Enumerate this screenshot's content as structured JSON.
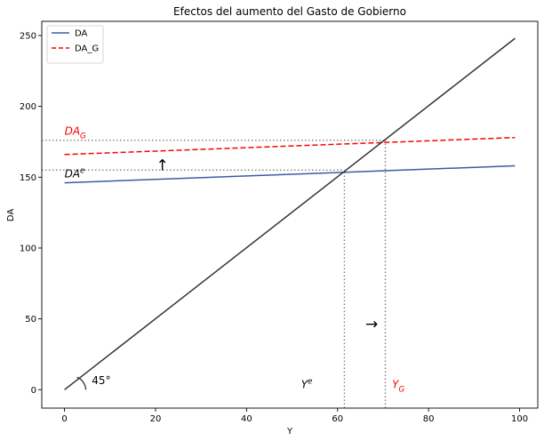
{
  "chart_data": {
    "type": "line",
    "title": "Efectos del aumento del Gasto de Gobierno",
    "xlabel": "Y",
    "ylabel": "DA",
    "xlim": [
      -5,
      104
    ],
    "ylim": [
      -13,
      260
    ],
    "xticks": [
      0,
      20,
      40,
      60,
      80,
      100
    ],
    "yticks": [
      0,
      50,
      100,
      150,
      200,
      250
    ],
    "grid": false,
    "legend_position": "top-left",
    "series": [
      {
        "name": "DA",
        "color": "#3b5ba5",
        "dash": "solid",
        "x": [
          0,
          99
        ],
        "y": [
          146,
          158
        ]
      },
      {
        "name": "DA_G",
        "color": "#ff0000",
        "dash": "dashed",
        "x": [
          0,
          99
        ],
        "y": [
          166,
          178
        ]
      },
      {
        "name": "",
        "color": "#333333",
        "dash": "solid",
        "x": [
          0,
          99
        ],
        "y": [
          0,
          248
        ]
      }
    ],
    "reference_lines": [
      {
        "orientation": "horizontal",
        "value": 155,
        "x_from": -5,
        "x_to": 61.5,
        "color": "#7f7f7f"
      },
      {
        "orientation": "horizontal",
        "value": 176,
        "x_from": -5,
        "x_to": 70.5,
        "color": "#7f7f7f"
      },
      {
        "orientation": "vertical",
        "value": 61.5,
        "y_from": -13,
        "y_to": 155,
        "color": "#7f7f7f"
      },
      {
        "orientation": "vertical",
        "value": 70.5,
        "y_from": -13,
        "y_to": 176,
        "color": "#7f7f7f"
      }
    ],
    "annotations": [
      {
        "base": "DA",
        "sub": "G",
        "sup": "",
        "x": 0,
        "y": 180,
        "color": "#ff0000",
        "size": 12
      },
      {
        "base": "DA",
        "sub": "",
        "sup": "e",
        "x": 0,
        "y": 150,
        "color": "#000000",
        "size": 12
      },
      {
        "base": "Y",
        "sub": "",
        "sup": "e",
        "x": 52,
        "y": 1,
        "color": "#000000",
        "size": 12
      },
      {
        "base": "Y",
        "sub": "G",
        "sup": "",
        "x": 72,
        "y": 1,
        "color": "#ff0000",
        "size": 12
      },
      {
        "base": "45°",
        "sub": "",
        "sup": "",
        "x": 6,
        "y": 4,
        "color": "#000000",
        "size": 12,
        "plain": true
      }
    ],
    "arrows": [
      {
        "symbol": "↑",
        "x": 21.5,
        "y": 158
      },
      {
        "symbol": "→",
        "x": 67.5,
        "y": 46
      }
    ]
  }
}
